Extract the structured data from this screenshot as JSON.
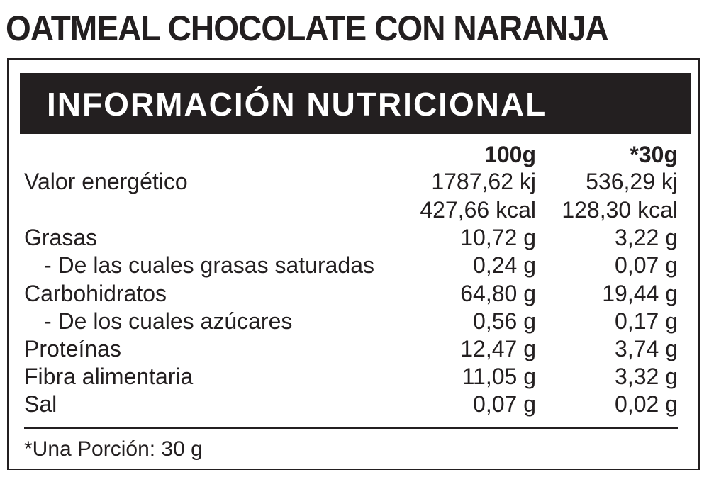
{
  "product_title": "OATMEAL CHOCOLATE CON NARANJA",
  "panel": {
    "header": "INFORMACIÓN NUTRICIONAL",
    "columns": [
      "100g",
      "*30g"
    ],
    "rows": [
      {
        "label": "Valor energético",
        "v100": "1787,62 kj",
        "v30": "536,29 kj"
      },
      {
        "label": "",
        "v100": "427,66 kcal",
        "v30": "128,30 kcal"
      },
      {
        "label": "Grasas",
        "v100": "10,72 g",
        "v30": "3,22 g"
      },
      {
        "label": "- De las cuales grasas saturadas",
        "v100": "0,24 g",
        "v30": "0,07 g"
      },
      {
        "label": "Carbohidratos",
        "v100": "64,80 g",
        "v30": "19,44 g"
      },
      {
        "label": "- De los cuales azúcares",
        "v100": "0,56 g",
        "v30": "0,17 g"
      },
      {
        "label": "Proteínas",
        "v100": "12,47 g",
        "v30": "3,74 g"
      },
      {
        "label": "Fibra alimentaria",
        "v100": "11,05 g",
        "v30": "3,32 g"
      },
      {
        "label": "Sal",
        "v100": "0,07 g",
        "v30": "0,02 g"
      }
    ],
    "footnote": "*Una Porción: 30 g"
  }
}
